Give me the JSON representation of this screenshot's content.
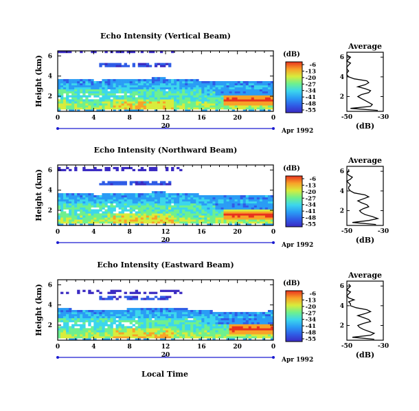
{
  "figure": {
    "xlabel": "Local Time",
    "date_label": "Apr 1992",
    "colorbar_unit": "(dB)",
    "colorbar_ticks": [
      "-6",
      "-13",
      "-20",
      "-27",
      "-34",
      "-41",
      "-48",
      "-55"
    ],
    "palette": [
      "#3a2ac2",
      "#2f5ce6",
      "#2a9cf5",
      "#3cd6ec",
      "#6ef08e",
      "#d8ec3c",
      "#f8a228",
      "#e8321e"
    ],
    "height_ticks": [
      "6",
      "4",
      "2"
    ],
    "time_ticks": [
      "0",
      "4",
      "8",
      "12",
      "16",
      "20",
      "0"
    ],
    "day_label": "20",
    "avg_x_ticks": [
      "-50",
      "-30"
    ],
    "avg_y_ticks": [
      "6",
      "4",
      "2"
    ]
  },
  "chart_data": [
    {
      "type": "heatmap",
      "title": "Echo Intensity (Vertical Beam)",
      "ylabel": "Height (km)",
      "xlabel": "Local Time",
      "xlim": [
        0,
        24
      ],
      "ylim": [
        0.5,
        6.5
      ],
      "color_range_db": [
        -55,
        -6
      ],
      "features": {
        "upper_layer_km": [
          5.0,
          6.2
        ],
        "main_layer_top_km": [
          3.8,
          3.5
        ],
        "strong_echo": {
          "start_hour": 18.5,
          "end_hour": 24,
          "height_km": [
            1.2,
            2.0
          ]
        }
      },
      "average": {
        "title": "Average",
        "xlabel": "(dB)",
        "xlim": [
          -50,
          -30
        ],
        "ylim": [
          0.5,
          6.5
        ],
        "height_km": [
          0.6,
          0.8,
          1.0,
          1.2,
          1.4,
          1.6,
          1.8,
          2.0,
          2.2,
          2.4,
          2.6,
          2.8,
          3.0,
          3.2,
          3.4,
          3.6,
          3.8,
          4.0,
          4.2,
          4.4,
          4.6,
          4.8,
          5.0,
          5.2,
          5.4,
          5.6,
          5.8,
          6.0,
          6.2
        ],
        "db": [
          -33,
          -48,
          -37,
          -36,
          -38,
          -40,
          -42,
          -44,
          -42,
          -38,
          -37,
          -40,
          -44,
          -40,
          -38,
          -39,
          -46,
          -49,
          -50,
          -50,
          -49,
          -50,
          -50,
          -49,
          -48,
          -50,
          -49,
          -48,
          -50
        ]
      }
    },
    {
      "type": "heatmap",
      "title": "Echo Intensity (Northward Beam)",
      "ylabel": "Height (km)",
      "xlabel": "Local Time",
      "xlim": [
        0,
        24
      ],
      "ylim": [
        0.5,
        6.5
      ],
      "color_range_db": [
        -55,
        -6
      ],
      "features": {
        "upper_layer_km": [
          4.5,
          6.0
        ],
        "main_layer_top_km": [
          3.8,
          3.5
        ],
        "strong_echo": {
          "start_hour": 18.5,
          "end_hour": 24,
          "height_km": [
            1.1,
            2.0
          ]
        }
      },
      "average": {
        "title": "Average",
        "xlabel": "(dB)",
        "xlim": [
          -50,
          -30
        ],
        "ylim": [
          0.5,
          6.5
        ],
        "height_km": [
          0.6,
          0.8,
          1.0,
          1.2,
          1.4,
          1.6,
          1.8,
          2.0,
          2.2,
          2.4,
          2.6,
          2.8,
          3.0,
          3.2,
          3.4,
          3.6,
          3.8,
          4.0,
          4.2,
          4.4,
          4.6,
          4.8,
          5.0,
          5.2,
          5.4,
          5.6,
          5.8,
          6.0,
          6.2
        ],
        "db": [
          -34,
          -47,
          -38,
          -33,
          -36,
          -40,
          -42,
          -43,
          -41,
          -38,
          -39,
          -42,
          -44,
          -41,
          -38,
          -40,
          -46,
          -48,
          -49,
          -49,
          -48,
          -49,
          -50,
          -48,
          -47,
          -49,
          -50,
          -49,
          -49
        ]
      }
    },
    {
      "type": "heatmap",
      "title": "Echo Intensity (Eastward Beam)",
      "ylabel": "Height (km)",
      "xlabel": "Local Time",
      "xlim": [
        0,
        24
      ],
      "ylim": [
        0.5,
        6.5
      ],
      "color_range_db": [
        -55,
        -6
      ],
      "features": {
        "upper_layer_km": [
          4.6,
          5.2
        ],
        "main_layer_top_km": [
          3.7,
          3.4
        ],
        "strong_echo": {
          "start_hour": 19,
          "end_hour": 24,
          "height_km": [
            1.2,
            2.0
          ]
        }
      },
      "average": {
        "title": "Average",
        "xlabel": "(dB)",
        "xlim": [
          -50,
          -30
        ],
        "ylim": [
          0.5,
          6.5
        ],
        "height_km": [
          0.6,
          0.8,
          1.0,
          1.2,
          1.4,
          1.6,
          1.8,
          2.0,
          2.2,
          2.4,
          2.6,
          2.8,
          3.0,
          3.2,
          3.4,
          3.6,
          3.8,
          4.0,
          4.2,
          4.4,
          4.6,
          4.8,
          5.0,
          5.2,
          5.4,
          5.6,
          5.8,
          6.0,
          6.2
        ],
        "db": [
          -35,
          -47,
          -37,
          -35,
          -38,
          -41,
          -43,
          -44,
          -41,
          -37,
          -38,
          -41,
          -44,
          -40,
          -37,
          -39,
          -45,
          -48,
          -48,
          -49,
          -46,
          -49,
          -50,
          -49,
          -48,
          -50,
          -49,
          -48,
          -49
        ]
      }
    }
  ]
}
